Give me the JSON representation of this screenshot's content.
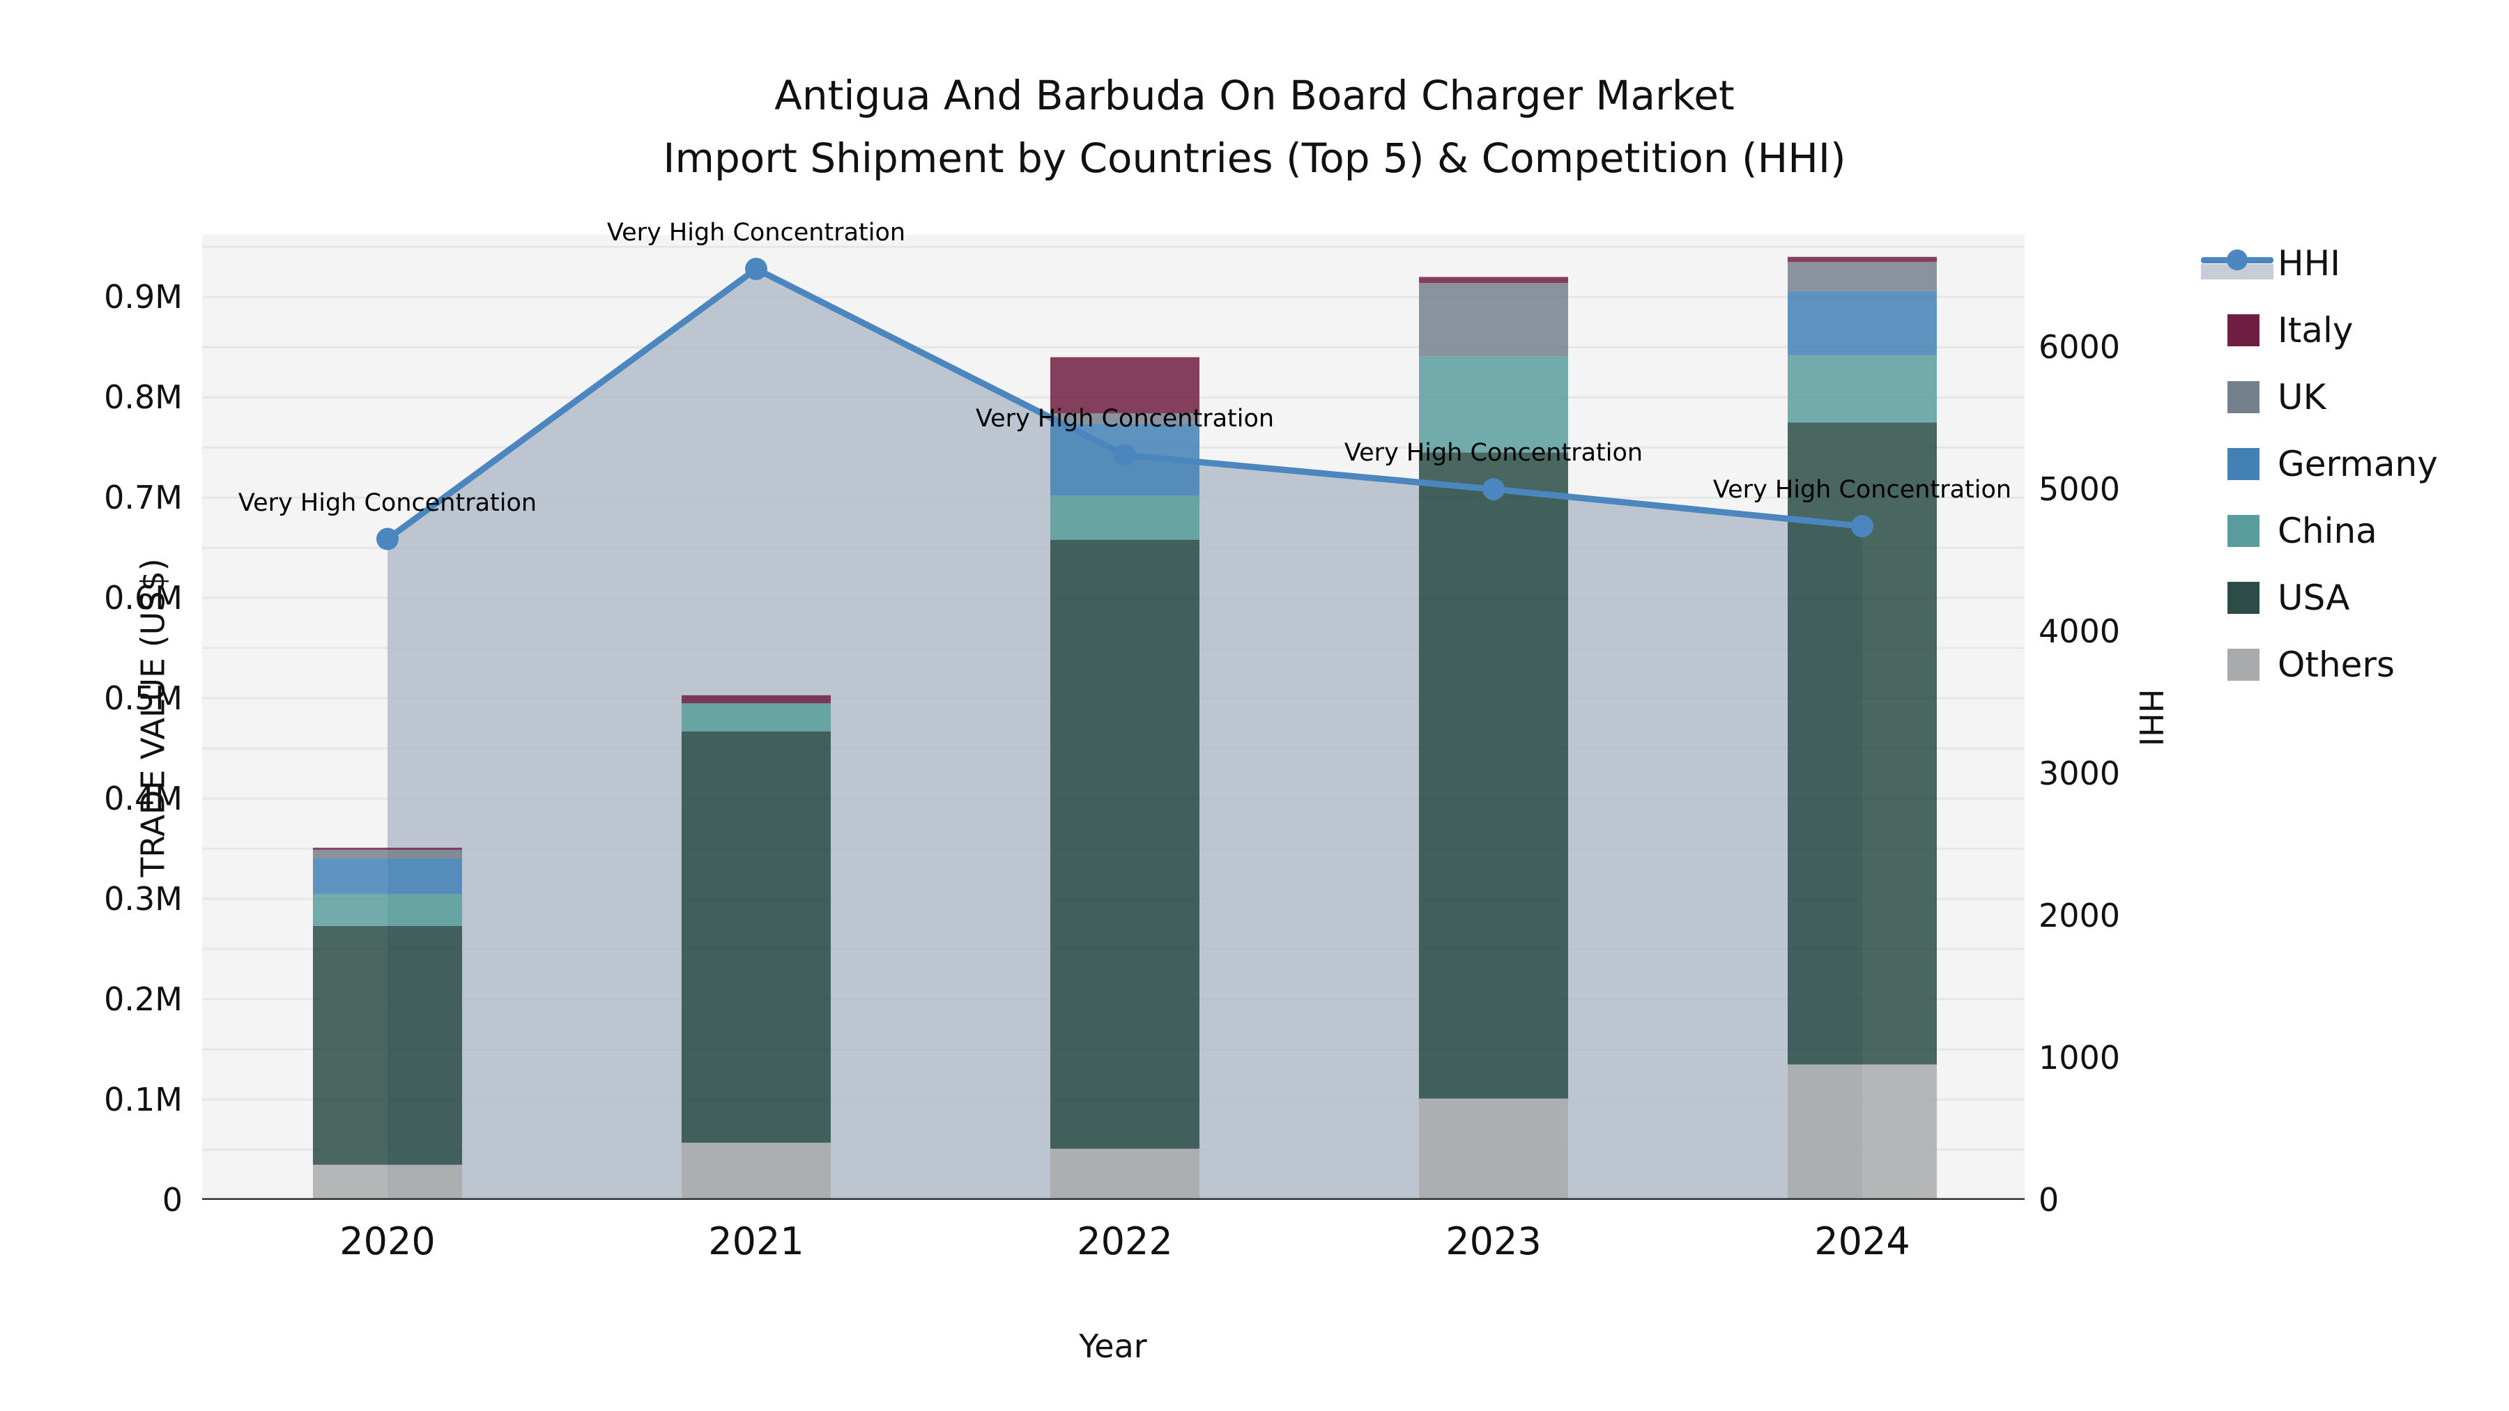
{
  "title": {
    "line1": "Antigua And Barbuda On Board Charger Market",
    "line2": "Import Shipment by Countries (Top 5) & Competition (HHI)"
  },
  "axes": {
    "y_left": {
      "label": "TRADE VALUE (US$)",
      "tick_values": [
        0,
        0.1,
        0.2,
        0.3,
        0.4,
        0.5,
        0.6,
        0.7,
        0.8,
        0.9
      ],
      "tick_labels": [
        "0",
        "0.1M",
        "0.2M",
        "0.3M",
        "0.4M",
        "0.5M",
        "0.6M",
        "0.7M",
        "0.8M",
        "0.9M"
      ]
    },
    "y_right": {
      "label": "HHI",
      "tick_values": [
        0,
        1000,
        2000,
        3000,
        4000,
        5000,
        6000
      ],
      "tick_labels": [
        "0",
        "1000",
        "2000",
        "3000",
        "4000",
        "5000",
        "6000"
      ]
    },
    "x": {
      "label": "Year"
    }
  },
  "legend": [
    {
      "key": "hhi",
      "label": "HHI",
      "type": "line",
      "color": "#4b86bf"
    },
    {
      "key": "italy",
      "label": "Italy",
      "type": "patch",
      "color": "#6e1e41"
    },
    {
      "key": "uk",
      "label": "UK",
      "type": "patch",
      "color": "#75808d"
    },
    {
      "key": "germany",
      "label": "Germany",
      "type": "patch",
      "color": "#4381b5"
    },
    {
      "key": "china",
      "label": "China",
      "type": "patch",
      "color": "#5b9d9e"
    },
    {
      "key": "usa",
      "label": "USA",
      "type": "patch",
      "color": "#2c4c47"
    },
    {
      "key": "others",
      "label": "Others",
      "type": "patch",
      "color": "#a9aaab"
    }
  ],
  "chart_data": {
    "type": "bar",
    "subtype": "stacked-bars-with-line-overlay",
    "title": "Antigua And Barbuda On Board Charger Market Import Shipment by Countries (Top 5) & Competition (HHI)",
    "xlabel": "Year",
    "ylabel": "TRADE VALUE (US$)",
    "y2label": "HHI",
    "categories": [
      "2020",
      "2021",
      "2022",
      "2023",
      "2024"
    ],
    "value_unit": "million US$",
    "series": [
      {
        "name": "Others",
        "color": "#a9aaab",
        "values": [
          0.035,
          0.057,
          0.051,
          0.101,
          0.135
        ]
      },
      {
        "name": "USA",
        "color": "#2c4c47",
        "values": [
          0.238,
          0.41,
          0.607,
          0.644,
          0.64
        ]
      },
      {
        "name": "China",
        "color": "#5b9d9e",
        "values": [
          0.032,
          0.028,
          0.044,
          0.096,
          0.067
        ]
      },
      {
        "name": "Germany",
        "color": "#4381b5",
        "values": [
          0.035,
          0.0,
          0.072,
          0.0,
          0.064
        ]
      },
      {
        "name": "UK",
        "color": "#75808d",
        "values": [
          0.009,
          0.0,
          0.01,
          0.073,
          0.029
        ]
      },
      {
        "name": "Italy",
        "color": "#6e1e41",
        "values": [
          0.002,
          0.008,
          0.056,
          0.006,
          0.005
        ]
      }
    ],
    "bar_totals": [
      0.351,
      0.503,
      0.84,
      0.92,
      0.94
    ],
    "line_series": {
      "name": "HHI",
      "color": "#4b86bf",
      "area_fill": "rgba(175,185,200,0.80)",
      "values": [
        4650,
        6550,
        5240,
        5000,
        4740
      ]
    },
    "annotations": [
      "Very High Concentration",
      "Very High Concentration",
      "Very High Concentration",
      "Very High Concentration",
      "Very High Concentration"
    ],
    "ylim": [
      0,
      0.962
    ],
    "y2lim": [
      0,
      6790
    ],
    "grid": true,
    "grid_step": 0.05,
    "legend_position": "right"
  },
  "colors": {
    "plot_background": "#f4f4f4",
    "figure_background": "#ffffff",
    "gridline": "#e6e6e6",
    "axis_line": "#333333",
    "text": "#111111"
  }
}
